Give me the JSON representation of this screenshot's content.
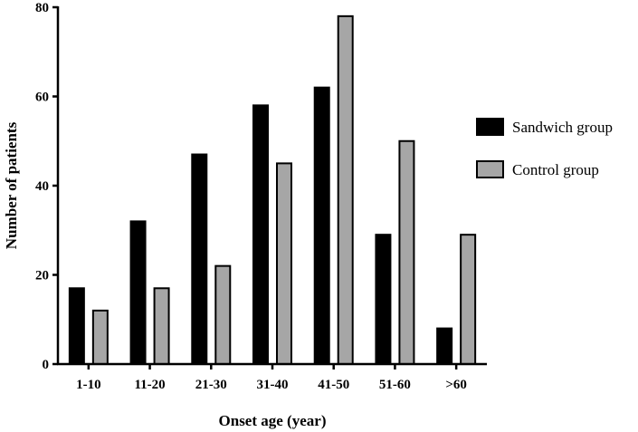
{
  "chart_data": {
    "type": "bar",
    "title": "",
    "xlabel": "Onset age (year)",
    "ylabel": "Number of patients",
    "ylim": [
      0,
      80
    ],
    "yticks": [
      0,
      20,
      40,
      60,
      80
    ],
    "categories": [
      "1-10",
      "11-20",
      "21-30",
      "31-40",
      "41-50",
      "51-60",
      ">60"
    ],
    "series": [
      {
        "name": "Sandwich group",
        "values": [
          17,
          32,
          47,
          58,
          62,
          29,
          8
        ],
        "color": "#000000"
      },
      {
        "name": "Control group",
        "values": [
          12,
          17,
          22,
          45,
          78,
          50,
          29
        ],
        "color": "#a6a6a6"
      }
    ],
    "legend_position": "right",
    "grid": false
  }
}
